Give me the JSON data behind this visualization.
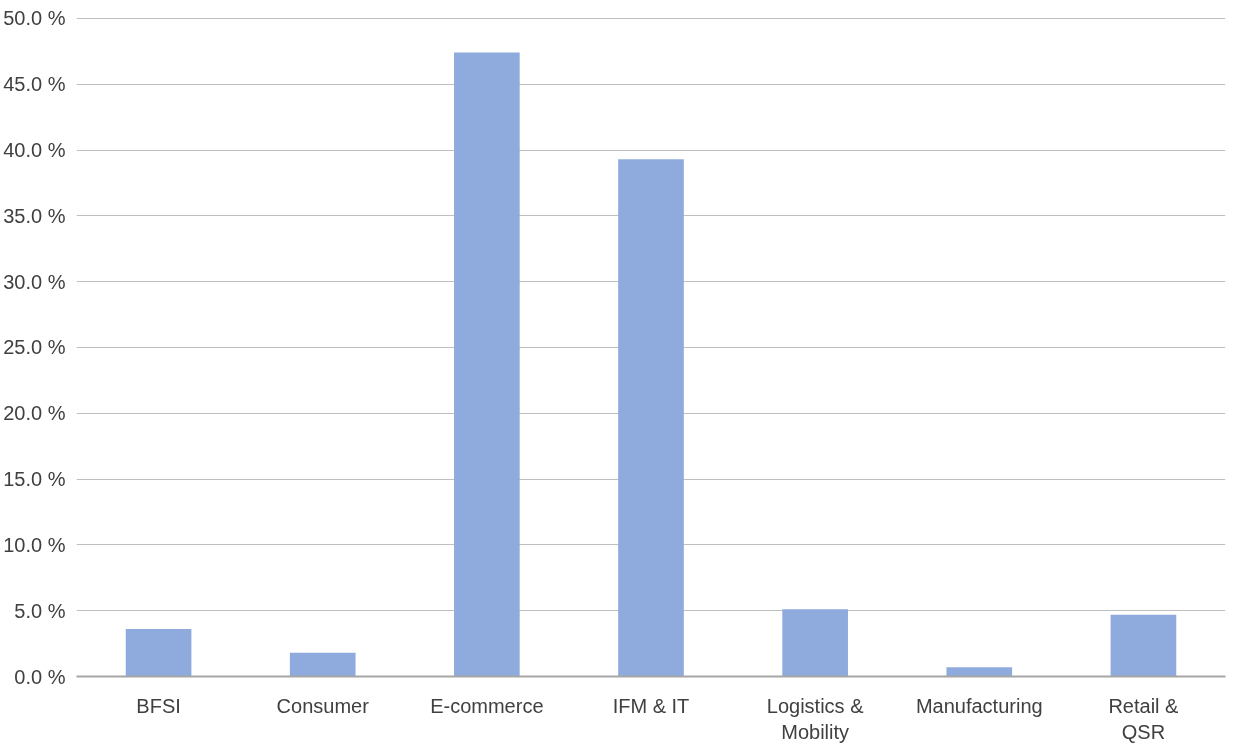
{
  "chart_data": {
    "type": "bar",
    "categories": [
      "BFSI",
      "Consumer",
      "E-commerce",
      "IFM & IT",
      "Logistics & Mobility",
      "Manufacturing",
      "Retail & QSR"
    ],
    "values": [
      3.6,
      1.8,
      47.4,
      39.3,
      5.1,
      0.7,
      4.7
    ],
    "color": "#8faadc",
    "ylim": [
      0,
      50
    ],
    "yticks": [
      {
        "value": 0,
        "label": "0.0 %"
      },
      {
        "value": 5,
        "label": "5.0 %"
      },
      {
        "value": 10,
        "label": "10.0 %"
      },
      {
        "value": 15,
        "label": "15.0 %"
      },
      {
        "value": 20,
        "label": "20.0 %"
      },
      {
        "value": 25,
        "label": "25.0 %"
      },
      {
        "value": 30,
        "label": "30.0 %"
      },
      {
        "value": 35,
        "label": "35.0 %"
      },
      {
        "value": 40,
        "label": "40.0 %"
      },
      {
        "value": 45,
        "label": "45.0 %"
      },
      {
        "value": 50,
        "label": "50.0 %"
      }
    ],
    "grid": "y"
  }
}
